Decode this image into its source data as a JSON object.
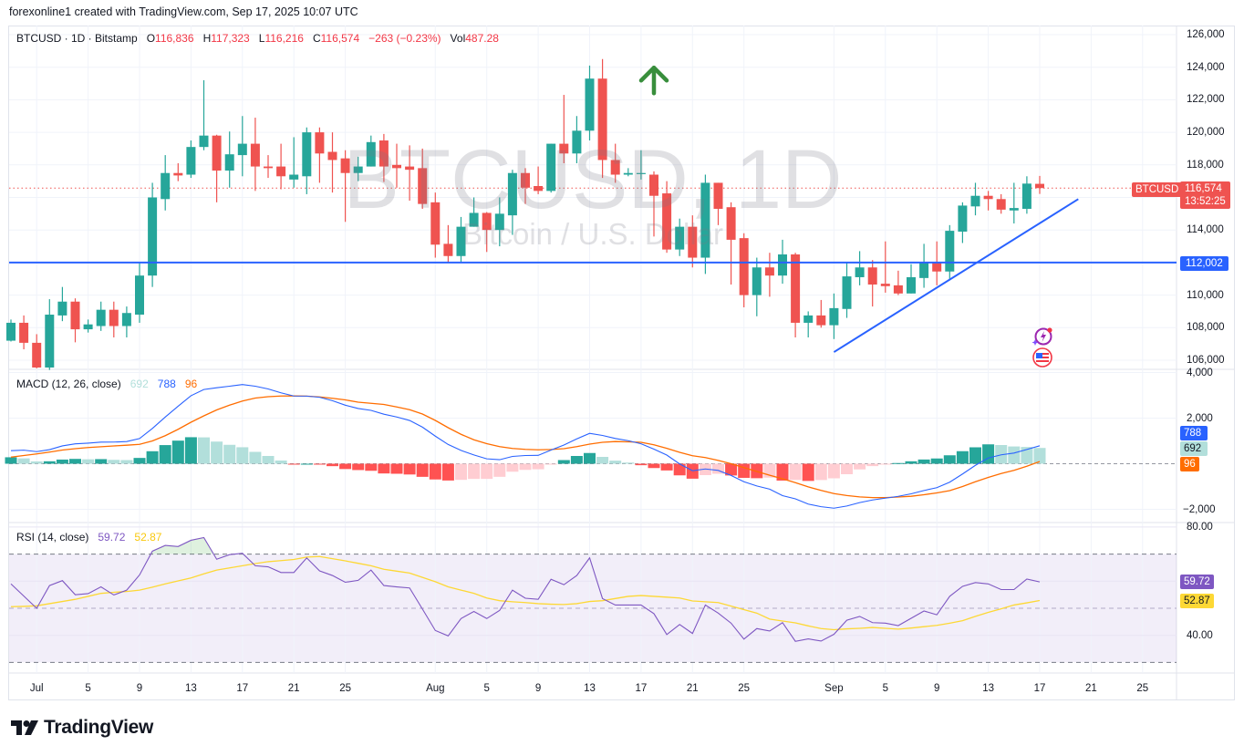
{
  "header": {
    "attribution": "forexonline1 created with TradingView.com, Sep 17, 2025 10:07 UTC"
  },
  "legend": {
    "symbol": "BTCUSD · 1D · Bitstamp",
    "o_label": "O",
    "o": "116,836",
    "h_label": "H",
    "h": "117,323",
    "l_label": "L",
    "l": "116,216",
    "c_label": "C",
    "c": "116,574",
    "change": "−263 (−0.23%)",
    "vol_label": "Vol",
    "vol": "487.28"
  },
  "watermark": {
    "title": "BTCUSD, 1D",
    "subtitle": "Bitcoin / U.S. Dollar"
  },
  "macd_legend": {
    "title": "MACD (12, 26, close)",
    "histogram": "692",
    "macd": "788",
    "signal": "96"
  },
  "rsi_legend": {
    "title": "RSI (14, close)",
    "rsi": "59.72",
    "ma": "52.87"
  },
  "price_tags": {
    "symbol": "BTCUSD",
    "last": "116,574",
    "countdown": "13:52:25",
    "hline": "112,002"
  },
  "macd_tags": {
    "macd": "788",
    "histogram": "692",
    "signal": "96"
  },
  "rsi_tags": {
    "rsi": "59.72",
    "ma": "52.87"
  },
  "logo": {
    "text": "TradingView",
    "icon": "tradingview-logo-icon"
  },
  "events": [
    {
      "icon": "lightning-event-icon",
      "date": "2025-09-17"
    },
    {
      "icon": "us-flag-event-icon",
      "date": "2025-09-17"
    }
  ],
  "colors": {
    "up": "#26a69a",
    "down": "#ef5350",
    "hline": "#2962ff",
    "trendline": "#2962ff",
    "arrow": "#388e3c",
    "macd": "#2962ff",
    "signal": "#ff6d00",
    "hist_up_strong": "#26a69a",
    "hist_up_weak": "#b2dfdb",
    "hist_down_strong": "#ff5252",
    "hist_down_weak": "#ffcdd2",
    "rsi": "#7e57c2",
    "rsi_ma": "#fdd835",
    "rsi_band": "#7e57c2",
    "legend_values": "#f23645"
  },
  "chart_data": {
    "type": "candlestick",
    "symbol": "BTCUSD",
    "interval": "1D",
    "exchange": "Bitstamp",
    "price_axis": {
      "range": [
        105500,
        126500
      ],
      "ticks": [
        "126,000",
        "124,000",
        "122,000",
        "120,000",
        "118,000",
        "114,000",
        "110,000",
        "108,000",
        "106,000"
      ],
      "tick_values": [
        126000,
        124000,
        122000,
        120000,
        118000,
        114000,
        110000,
        108000,
        106000
      ],
      "grid_values": [
        126000,
        124000,
        122000,
        120000,
        118000,
        116000,
        114000,
        112000,
        110000,
        108000,
        106000
      ]
    },
    "date_axis": {
      "ticks": [
        {
          "label": "Jul",
          "date": "2025-07-01"
        },
        {
          "label": "5",
          "date": "2025-07-05"
        },
        {
          "label": "9",
          "date": "2025-07-09"
        },
        {
          "label": "13",
          "date": "2025-07-13"
        },
        {
          "label": "17",
          "date": "2025-07-17"
        },
        {
          "label": "21",
          "date": "2025-07-21"
        },
        {
          "label": "25",
          "date": "2025-07-25"
        },
        {
          "label": "Aug",
          "date": "2025-08-01"
        },
        {
          "label": "5",
          "date": "2025-08-05"
        },
        {
          "label": "9",
          "date": "2025-08-09"
        },
        {
          "label": "13",
          "date": "2025-08-13"
        },
        {
          "label": "17",
          "date": "2025-08-17"
        },
        {
          "label": "21",
          "date": "2025-08-21"
        },
        {
          "label": "25",
          "date": "2025-08-25"
        },
        {
          "label": "Sep",
          "date": "2025-09-01"
        },
        {
          "label": "5",
          "date": "2025-09-05"
        },
        {
          "label": "9",
          "date": "2025-09-09"
        },
        {
          "label": "13",
          "date": "2025-09-13"
        },
        {
          "label": "17",
          "date": "2025-09-17"
        },
        {
          "label": "21",
          "date": "2025-09-21"
        },
        {
          "label": "25",
          "date": "2025-09-25"
        }
      ]
    },
    "candles_columns": [
      "date",
      "open",
      "high",
      "low",
      "close"
    ],
    "candles": [
      [
        "2025-06-29",
        107200,
        108500,
        107150,
        108300
      ],
      [
        "2025-06-30",
        108300,
        108750,
        106670,
        107070
      ],
      [
        "2025-07-01",
        107070,
        107600,
        105500,
        105550
      ],
      [
        "2025-07-02",
        105550,
        109750,
        105400,
        108800
      ],
      [
        "2025-07-03",
        108750,
        110500,
        108400,
        109600
      ],
      [
        "2025-07-04",
        109600,
        109800,
        107100,
        107900
      ],
      [
        "2025-07-05",
        107900,
        108500,
        107700,
        108200
      ],
      [
        "2025-07-06",
        108100,
        109600,
        107800,
        109100
      ],
      [
        "2025-07-07",
        109100,
        109600,
        107400,
        108100
      ],
      [
        "2025-07-08",
        108100,
        109300,
        107400,
        108900
      ],
      [
        "2025-07-09",
        108800,
        112000,
        108300,
        111200
      ],
      [
        "2025-07-10",
        111200,
        116900,
        110500,
        116000
      ],
      [
        "2025-07-11",
        115900,
        118600,
        115200,
        117500
      ],
      [
        "2025-07-12",
        117500,
        118100,
        117000,
        117350
      ],
      [
        "2025-07-13",
        117400,
        119500,
        117200,
        119100
      ],
      [
        "2025-07-14",
        119100,
        123200,
        118900,
        119800
      ],
      [
        "2025-07-15",
        119800,
        119850,
        115700,
        117650
      ],
      [
        "2025-07-16",
        117650,
        120050,
        116600,
        118650
      ],
      [
        "2025-07-17",
        118600,
        121000,
        117300,
        119300
      ],
      [
        "2025-07-18",
        119300,
        120900,
        116400,
        117900
      ],
      [
        "2025-07-19",
        117900,
        118600,
        117200,
        117800
      ],
      [
        "2025-07-20",
        117900,
        119300,
        116500,
        117300
      ],
      [
        "2025-07-21",
        117100,
        119700,
        116600,
        117400
      ],
      [
        "2025-07-22",
        117300,
        120300,
        116200,
        120000
      ],
      [
        "2025-07-23",
        120000,
        120300,
        116900,
        118700
      ],
      [
        "2025-07-24",
        118800,
        120000,
        116300,
        118300
      ],
      [
        "2025-07-25",
        118400,
        118900,
        114500,
        117500
      ],
      [
        "2025-07-26",
        117500,
        118500,
        117000,
        117900
      ],
      [
        "2025-07-27",
        117900,
        119800,
        117900,
        119400
      ],
      [
        "2025-07-28",
        119500,
        119900,
        116950,
        117900
      ],
      [
        "2025-07-29",
        118000,
        119300,
        116600,
        117800
      ],
      [
        "2025-07-30",
        117900,
        119200,
        115800,
        117700
      ],
      [
        "2025-07-31",
        117800,
        119000,
        115300,
        115600
      ],
      [
        "2025-08-01",
        115700,
        116300,
        112300,
        113100
      ],
      [
        "2025-08-02",
        113150,
        114300,
        112000,
        112400
      ],
      [
        "2025-08-03",
        112400,
        114800,
        112000,
        114200
      ],
      [
        "2025-08-04",
        114200,
        116000,
        114200,
        115050
      ],
      [
        "2025-08-05",
        115050,
        115100,
        112650,
        114000
      ],
      [
        "2025-08-06",
        114000,
        116000,
        113000,
        115000
      ],
      [
        "2025-08-07",
        114900,
        117700,
        113700,
        117500
      ],
      [
        "2025-08-08",
        117500,
        117800,
        115600,
        116600
      ],
      [
        "2025-08-09",
        116700,
        117900,
        116200,
        116400
      ],
      [
        "2025-08-10",
        116400,
        119300,
        116300,
        119300
      ],
      [
        "2025-08-11",
        119300,
        122300,
        118100,
        118700
      ],
      [
        "2025-08-12",
        118700,
        121000,
        118100,
        120100
      ],
      [
        "2025-08-13",
        120100,
        124100,
        119500,
        123300
      ],
      [
        "2025-08-14",
        123300,
        124500,
        117200,
        118300
      ],
      [
        "2025-08-15",
        118300,
        119300,
        116900,
        117400
      ],
      [
        "2025-08-16",
        117400,
        117800,
        117300,
        117500
      ],
      [
        "2025-08-17",
        117500,
        118900,
        117100,
        117500
      ],
      [
        "2025-08-18",
        117400,
        117600,
        113600,
        116100
      ],
      [
        "2025-08-19",
        116250,
        117000,
        112600,
        112800
      ],
      [
        "2025-08-20",
        112800,
        114700,
        112400,
        114200
      ],
      [
        "2025-08-21",
        114200,
        114900,
        111700,
        112300
      ],
      [
        "2025-08-22",
        112300,
        117400,
        111300,
        116900
      ],
      [
        "2025-08-23",
        116900,
        116900,
        114300,
        115300
      ],
      [
        "2025-08-24",
        115400,
        115700,
        110650,
        113400
      ],
      [
        "2025-08-25",
        113500,
        113800,
        109250,
        110000
      ],
      [
        "2025-08-26",
        110000,
        112300,
        108700,
        111700
      ],
      [
        "2025-08-27",
        111700,
        112600,
        109900,
        111200
      ],
      [
        "2025-08-28",
        111200,
        113400,
        110700,
        112500
      ],
      [
        "2025-08-29",
        112500,
        112600,
        107400,
        108300
      ],
      [
        "2025-08-30",
        108300,
        109000,
        107400,
        108750
      ],
      [
        "2025-08-31",
        108750,
        109700,
        108000,
        108150
      ],
      [
        "2025-09-01",
        108150,
        110100,
        107300,
        109200
      ],
      [
        "2025-09-02",
        109150,
        112000,
        108600,
        111150
      ],
      [
        "2025-09-03",
        111100,
        112700,
        110600,
        111700
      ],
      [
        "2025-09-04",
        111700,
        112150,
        109300,
        110650
      ],
      [
        "2025-09-05",
        110700,
        113300,
        110150,
        110550
      ],
      [
        "2025-09-06",
        110600,
        111500,
        110000,
        110100
      ],
      [
        "2025-09-07",
        110100,
        111900,
        110100,
        111100
      ],
      [
        "2025-09-08",
        111050,
        113150,
        110450,
        112050
      ],
      [
        "2025-09-09",
        112050,
        113300,
        110600,
        111450
      ],
      [
        "2025-09-10",
        111450,
        114300,
        110900,
        113950
      ],
      [
        "2025-09-11",
        113900,
        115700,
        113200,
        115500
      ],
      [
        "2025-09-12",
        115450,
        116900,
        114900,
        116100
      ],
      [
        "2025-09-13",
        116100,
        116400,
        115200,
        115900
      ],
      [
        "2025-09-14",
        115900,
        116200,
        115000,
        115250
      ],
      [
        "2025-09-15",
        115200,
        116900,
        114400,
        115350
      ],
      [
        "2025-09-16",
        115300,
        117300,
        115000,
        116850
      ],
      [
        "2025-09-17",
        116836,
        117323,
        116216,
        116574
      ]
    ],
    "last_price": 116574,
    "horizontal_line": {
      "price": 112002
    },
    "trendline": {
      "points": [
        [
          "2025-09-01",
          106500
        ],
        [
          "2025-09-20",
          115900
        ]
      ]
    },
    "annotations": [
      {
        "type": "arrow-up",
        "date": "2025-08-18",
        "price": 122400
      }
    ],
    "macd": {
      "params": "12, 26, close",
      "range": [
        -2600,
        4200
      ],
      "tick_labels": [
        "4,000",
        "2,000",
        "−2,000"
      ],
      "tick_values": [
        4000,
        2000,
        -2000
      ],
      "macd": [
        573,
        595,
        530,
        617,
        782,
        872,
        904,
        947,
        950,
        973,
        1104,
        1548,
        2047,
        2523,
        2983,
        3256,
        3331,
        3400,
        3473,
        3400,
        3280,
        3110,
        2970,
        2965,
        2915,
        2764,
        2567,
        2422,
        2340,
        2173,
        2050,
        1898,
        1605,
        1210,
        844,
        583,
        384,
        215,
        176,
        320,
        360,
        366,
        600,
        820,
        1090,
        1330,
        1240,
        1107,
        1010,
        875,
        640,
        380,
        -10,
        -306,
        -230,
        -293,
        -515,
        -790,
        -975,
        -1115,
        -1400,
        -1540,
        -1770,
        -1885,
        -1950,
        -1855,
        -1705,
        -1590,
        -1510,
        -1430,
        -1320,
        -1175,
        -1050,
        -810,
        -450,
        -70,
        250,
        390,
        467,
        625,
        788
      ],
      "signal": [
        290,
        360,
        430,
        510,
        600,
        660,
        710,
        745,
        780,
        813,
        850,
        1000,
        1230,
        1510,
        1820,
        2100,
        2360,
        2570,
        2750,
        2880,
        2940,
        2970,
        2973,
        2965,
        2930,
        2870,
        2800,
        2700,
        2650,
        2600,
        2490,
        2370,
        2180,
        1900,
        1580,
        1290,
        1050,
        880,
        750,
        670,
        630,
        610,
        625,
        660,
        750,
        860,
        940,
        972,
        960,
        940,
        830,
        675,
        500,
        350,
        270,
        147,
        0,
        -170,
        -340,
        -505,
        -660,
        -830,
        -1015,
        -1170,
        -1310,
        -1395,
        -1455,
        -1485,
        -1487,
        -1460,
        -1427,
        -1360,
        -1280,
        -1180,
        -1000,
        -790,
        -600,
        -430,
        -290,
        -110,
        96
      ]
    },
    "rsi": {
      "params": "14, close",
      "range": [
        25,
        82
      ],
      "tick_labels": [
        "80.00",
        "40.00"
      ],
      "tick_values": [
        80,
        40
      ],
      "bands": [
        70,
        50,
        30
      ],
      "rsi": [
        59,
        54.5,
        50,
        58.4,
        60.2,
        55,
        55.4,
        57.9,
        54.9,
        56.7,
        62.3,
        71.1,
        73.2,
        72.8,
        75.1,
        76.1,
        68.1,
        69.8,
        70.3,
        65.7,
        65.3,
        63.2,
        63.2,
        68.6,
        63.8,
        62.1,
        59.6,
        60.3,
        64.1,
        58.4,
        57.9,
        57.5,
        49.7,
        41.8,
        39.8,
        46.2,
        48.8,
        46.2,
        49.2,
        56.7,
        53.7,
        53.3,
        60.7,
        58.7,
        62.1,
        68.6,
        53.6,
        51.2,
        51.2,
        51.2,
        48,
        40.3,
        44,
        40.7,
        51.2,
        48.2,
        44.5,
        38.6,
        42.5,
        41.6,
        44.7,
        37.8,
        38.7,
        37.9,
        40.4,
        45.6,
        47,
        44.7,
        44.5,
        43.6,
        46.3,
        49,
        47.6,
        54.4,
        58.1,
        59.5,
        59,
        56.9,
        56.9,
        60.8,
        59.72
      ],
      "ma": [
        50.6,
        50.7,
        50.9,
        51.7,
        52.5,
        53.3,
        54.4,
        55.5,
        55.9,
        56.2,
        56.7,
        57.8,
        59,
        60.1,
        61.2,
        62.7,
        64.1,
        64.9,
        65.7,
        66.5,
        67.2,
        67.6,
        68,
        68.9,
        69.1,
        68.3,
        67.5,
        66.6,
        65.7,
        64.4,
        63.7,
        63,
        61.4,
        59.8,
        57.9,
        56.7,
        55.5,
        53.8,
        52.8,
        52.4,
        52.1,
        51.7,
        51.5,
        51.4,
        51.7,
        52.5,
        52.8,
        53.6,
        54.4,
        54.7,
        54.4,
        54.1,
        53.8,
        52.7,
        52.4,
        52.1,
        50.8,
        49.5,
        48.2,
        46,
        45.3,
        44.6,
        43.5,
        42.5,
        42.1,
        42.4,
        42.6,
        42.9,
        42.6,
        42.3,
        42.7,
        43.2,
        43.7,
        44.5,
        45.4,
        47,
        48.5,
        49.8,
        51.2,
        52,
        52.87
      ]
    }
  }
}
